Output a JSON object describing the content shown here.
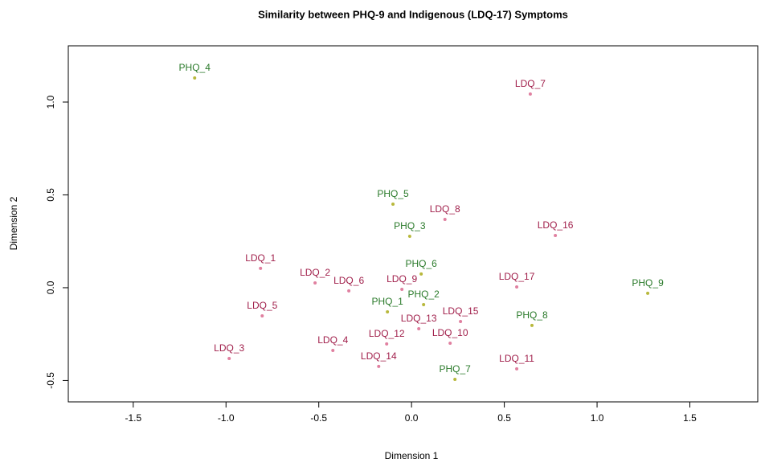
{
  "chart_data": {
    "type": "scatter",
    "title": "Similarity between PHQ-9 and Indigenous (LDQ-17) Symptoms",
    "xlabel": "Dimension 1",
    "ylabel": "Dimension 2",
    "xlim": [
      -1.85,
      1.866
    ],
    "ylim": [
      -0.615,
      1.303
    ],
    "xticks": [
      -1.5,
      {
        "value": -1,
        "label": "-1.0"
      },
      -0.5,
      {
        "value": 0,
        "label": "0.0"
      },
      0.5,
      {
        "value": 1,
        "label": "1.0"
      },
      1.5
    ],
    "yticks": [
      -0.5,
      {
        "value": 0,
        "label": "0.0"
      },
      0.5,
      {
        "value": 1,
        "label": "1.0"
      }
    ],
    "series": [
      {
        "color": "#b8b83c",
        "label_color": "#2a7a2a",
        "labels": [
          "PHQ_4",
          "PHQ_5",
          "PHQ_3",
          "PHQ_6",
          "PHQ_9",
          "PHQ_2",
          "PHQ_1",
          "PHQ_8",
          "PHQ_7"
        ],
        "x": [
          -1.169,
          -0.1,
          -0.01,
          0.052,
          1.273,
          0.065,
          -0.13,
          0.649,
          0.234
        ],
        "y": [
          1.13,
          0.45,
          0.277,
          0.074,
          -0.03,
          -0.091,
          -0.13,
          -0.203,
          -0.494
        ]
      },
      {
        "color": "#e080a0",
        "label_color": "#a01e4a",
        "labels": [
          "LDQ_7",
          "LDQ_8",
          "LDQ_16",
          "LDQ_1",
          "LDQ_2",
          "LDQ_6",
          "LDQ_9",
          "LDQ_17",
          "LDQ_5",
          "LDQ_15",
          "LDQ_13",
          "LDQ_10",
          "LDQ_12",
          "LDQ_4",
          "LDQ_3",
          "LDQ_14",
          "LDQ_11"
        ],
        "x": [
          0.64,
          0.18,
          0.775,
          -0.814,
          -0.52,
          -0.338,
          -0.052,
          0.567,
          -0.805,
          0.264,
          0.039,
          0.208,
          -0.134,
          -0.424,
          -0.983,
          -0.177,
          0.567
        ],
        "y": [
          1.043,
          0.368,
          0.281,
          0.104,
          0.026,
          -0.017,
          -0.009,
          0.004,
          -0.152,
          -0.182,
          -0.221,
          -0.299,
          -0.303,
          -0.338,
          -0.381,
          -0.424,
          -0.437
        ]
      }
    ]
  }
}
